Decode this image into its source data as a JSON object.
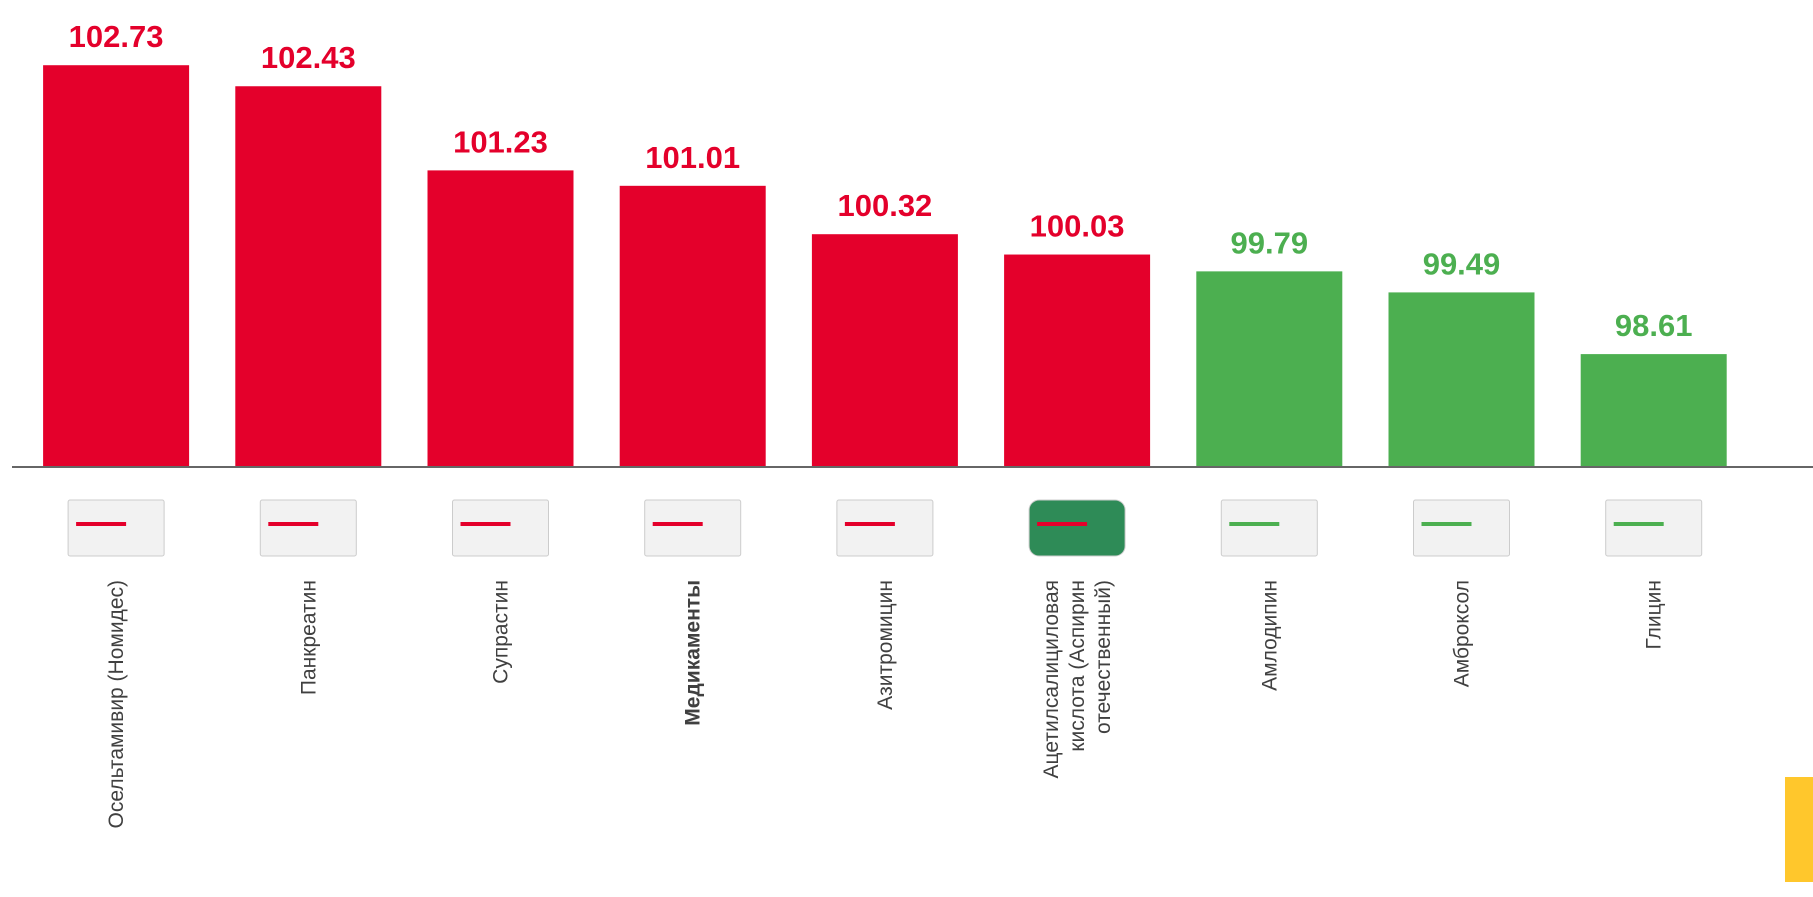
{
  "chart_data": {
    "type": "bar",
    "categories": [
      "Осельтамивир (Номидес)",
      "Панкреатин",
      "Супрастин",
      "Медикаменты",
      "Азитромицин",
      "Ацетилсалициловая кислота (Аспирин отечественный)",
      "Амлодипин",
      "Амброксол",
      "Глицин"
    ],
    "values": [
      102.73,
      102.43,
      101.23,
      101.01,
      100.32,
      100.03,
      99.79,
      99.49,
      98.61
    ],
    "colors": [
      "#e4002b",
      "#e4002b",
      "#e4002b",
      "#e4002b",
      "#e4002b",
      "#e4002b",
      "#4caf50",
      "#4caf50",
      "#4caf50"
    ],
    "bold_category": "Медикаменты",
    "ylim": [
      97,
      103.66
    ]
  }
}
